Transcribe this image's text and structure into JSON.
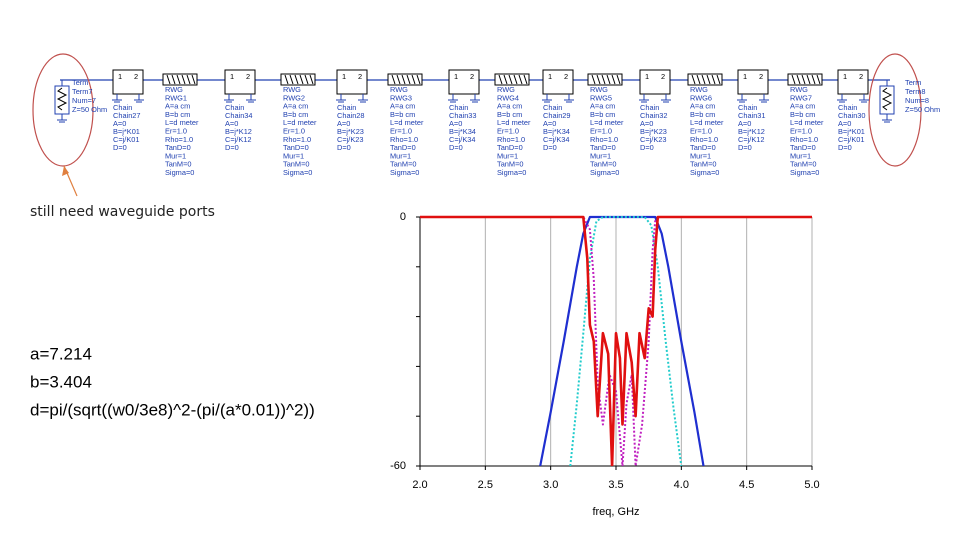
{
  "notes": {
    "ports": "still need waveguide ports",
    "equations": [
      "a=7.214",
      "b=3.404",
      "d=pi/(sqrt((w0/3e8)^2-(pi/(a*0.01))^2))"
    ]
  },
  "schematic": {
    "port_labels": [
      "1",
      "2"
    ],
    "components": [
      {
        "lines": [
          "Term",
          "Term7",
          "Num=7",
          "Z=50 Ohm"
        ]
      },
      {
        "lines": [
          "Chain",
          "Chain27",
          "A=0",
          "B=j*K01",
          "C=j/K01",
          "D=0"
        ]
      },
      {
        "lines": [
          "RWG",
          "RWG1",
          "A=a cm",
          "B=b cm",
          "L=d meter",
          "Er=1.0",
          "Rho=1.0",
          "TanD=0",
          "Mur=1",
          "TanM=0",
          "Sigma=0"
        ]
      },
      {
        "lines": [
          "Chain",
          "Chain34",
          "A=0",
          "B=j*K12",
          "C=j/K12",
          "D=0"
        ]
      },
      {
        "lines": [
          "RWG",
          "RWG2",
          "A=a cm",
          "B=b cm",
          "L=d meter",
          "Er=1.0",
          "Rho=1.0",
          "TanD=0",
          "Mur=1",
          "TanM=0",
          "Sigma=0"
        ]
      },
      {
        "lines": [
          "Chain",
          "Chain28",
          "A=0",
          "B=j*K23",
          "C=j/K23",
          "D=0"
        ]
      },
      {
        "lines": [
          "RWG",
          "RWG3",
          "A=a cm",
          "B=b cm",
          "L=d meter",
          "Er=1.0",
          "Rho=1.0",
          "TanD=0",
          "Mur=1",
          "TanM=0",
          "Sigma=0"
        ]
      },
      {
        "lines": [
          "Chain",
          "Chain33",
          "A=0",
          "B=j*K34",
          "C=j/K34",
          "D=0"
        ]
      },
      {
        "lines": [
          "RWG",
          "RWG4",
          "A=a cm",
          "B=b cm",
          "L=d meter",
          "Er=1.0",
          "Rho=1.0",
          "TanD=0",
          "Mur=1",
          "TanM=0",
          "Sigma=0"
        ]
      },
      {
        "lines": [
          "Chain",
          "Chain29",
          "A=0",
          "B=j*K34",
          "C=j/K34",
          "D=0"
        ]
      },
      {
        "lines": [
          "RWG",
          "RWG5",
          "A=a cm",
          "B=b cm",
          "L=d meter",
          "Er=1.0",
          "Rho=1.0",
          "TanD=0",
          "Mur=1",
          "TanM=0",
          "Sigma=0"
        ]
      },
      {
        "lines": [
          "Chain",
          "Chain32",
          "A=0",
          "B=j*K23",
          "C=j/K23",
          "D=0"
        ]
      },
      {
        "lines": [
          "RWG",
          "RWG6",
          "A=a cm",
          "B=b cm",
          "L=d meter",
          "Er=1.0",
          "Rho=1.0",
          "TanD=0",
          "Mur=1",
          "TanM=0",
          "Sigma=0"
        ]
      },
      {
        "lines": [
          "Chain",
          "Chain31",
          "A=0",
          "B=j*K12",
          "C=j/K12",
          "D=0"
        ]
      },
      {
        "lines": [
          "RWG",
          "RWG7",
          "A=a cm",
          "B=b cm",
          "L=d meter",
          "Er=1.0",
          "Rho=1.0",
          "TanD=0",
          "Mur=1",
          "TanM=0",
          "Sigma=0"
        ]
      },
      {
        "lines": [
          "Chain",
          "Chain30",
          "A=0",
          "B=j*K01",
          "C=j/K01",
          "D=0"
        ]
      },
      {
        "lines": [
          "Term",
          "Term8",
          "Num=8",
          "Z=50 Ohm"
        ]
      }
    ]
  },
  "chart_data": {
    "type": "line",
    "x_label": "freq, GHz",
    "xlim": [
      2,
      5
    ],
    "ylim": [
      -60,
      0
    ],
    "xticks": [
      {
        "value": 2,
        "label": "2.0"
      },
      {
        "value": 2.5,
        "label": "2.5"
      },
      {
        "value": 3,
        "label": "3.0"
      },
      {
        "value": 3.5,
        "label": "3.5"
      },
      {
        "value": 4,
        "label": "4.0"
      },
      {
        "value": 4.5,
        "label": "4.5"
      },
      {
        "value": 5,
        "label": "5.0"
      }
    ],
    "yticks": [
      0,
      -60
    ],
    "yminor_ticks": [
      -48,
      -36,
      -24,
      -12
    ],
    "grid": true,
    "series": [
      {
        "color": "#1f2fd0",
        "width": 2.2,
        "dash": "none",
        "x": [
          2.92,
          3.0,
          3.1,
          3.2,
          3.25,
          3.3,
          3.8,
          3.85,
          3.9,
          4.0,
          4.1,
          4.17
        ],
        "values": [
          -60,
          -47,
          -30,
          -12,
          -4,
          0,
          0,
          -4,
          -12,
          -30,
          -47,
          -60
        ]
      },
      {
        "color": "#22cccc",
        "width": 2,
        "dash": "2 2",
        "x": [
          3.15,
          3.2,
          3.25,
          3.3,
          3.35,
          3.4,
          3.72,
          3.77,
          3.82,
          3.88,
          3.94,
          4.0
        ],
        "values": [
          -60,
          -45,
          -28,
          -10,
          -1,
          0,
          0,
          -2,
          -12,
          -30,
          -46,
          -60
        ]
      },
      {
        "color": "#c020c0",
        "width": 2,
        "dash": "2 2",
        "x": [
          2.0,
          3.25,
          3.3,
          3.33,
          3.36,
          3.4,
          3.45,
          3.5,
          3.55,
          3.58,
          3.62,
          3.65,
          3.7,
          3.75,
          3.78,
          3.8,
          3.83,
          5.0
        ],
        "values": [
          0,
          0,
          -3,
          -15,
          -40,
          -50,
          -38,
          -42,
          -60,
          -45,
          -38,
          -60,
          -50,
          -30,
          -8,
          -1,
          0,
          0
        ]
      },
      {
        "color": "#e01010",
        "width": 2.6,
        "dash": "none",
        "x": [
          2.0,
          3.25,
          3.28,
          3.3,
          3.33,
          3.36,
          3.4,
          3.44,
          3.47,
          3.5,
          3.53,
          3.55,
          3.58,
          3.62,
          3.65,
          3.68,
          3.72,
          3.75,
          3.78,
          3.8,
          3.82,
          5.0
        ],
        "values": [
          0,
          0,
          -10,
          -26,
          -30,
          -48,
          -28,
          -33,
          -60,
          -28,
          -34,
          -50,
          -28,
          -35,
          -48,
          -28,
          -34,
          -22,
          -24,
          -8,
          0,
          0
        ]
      }
    ]
  }
}
